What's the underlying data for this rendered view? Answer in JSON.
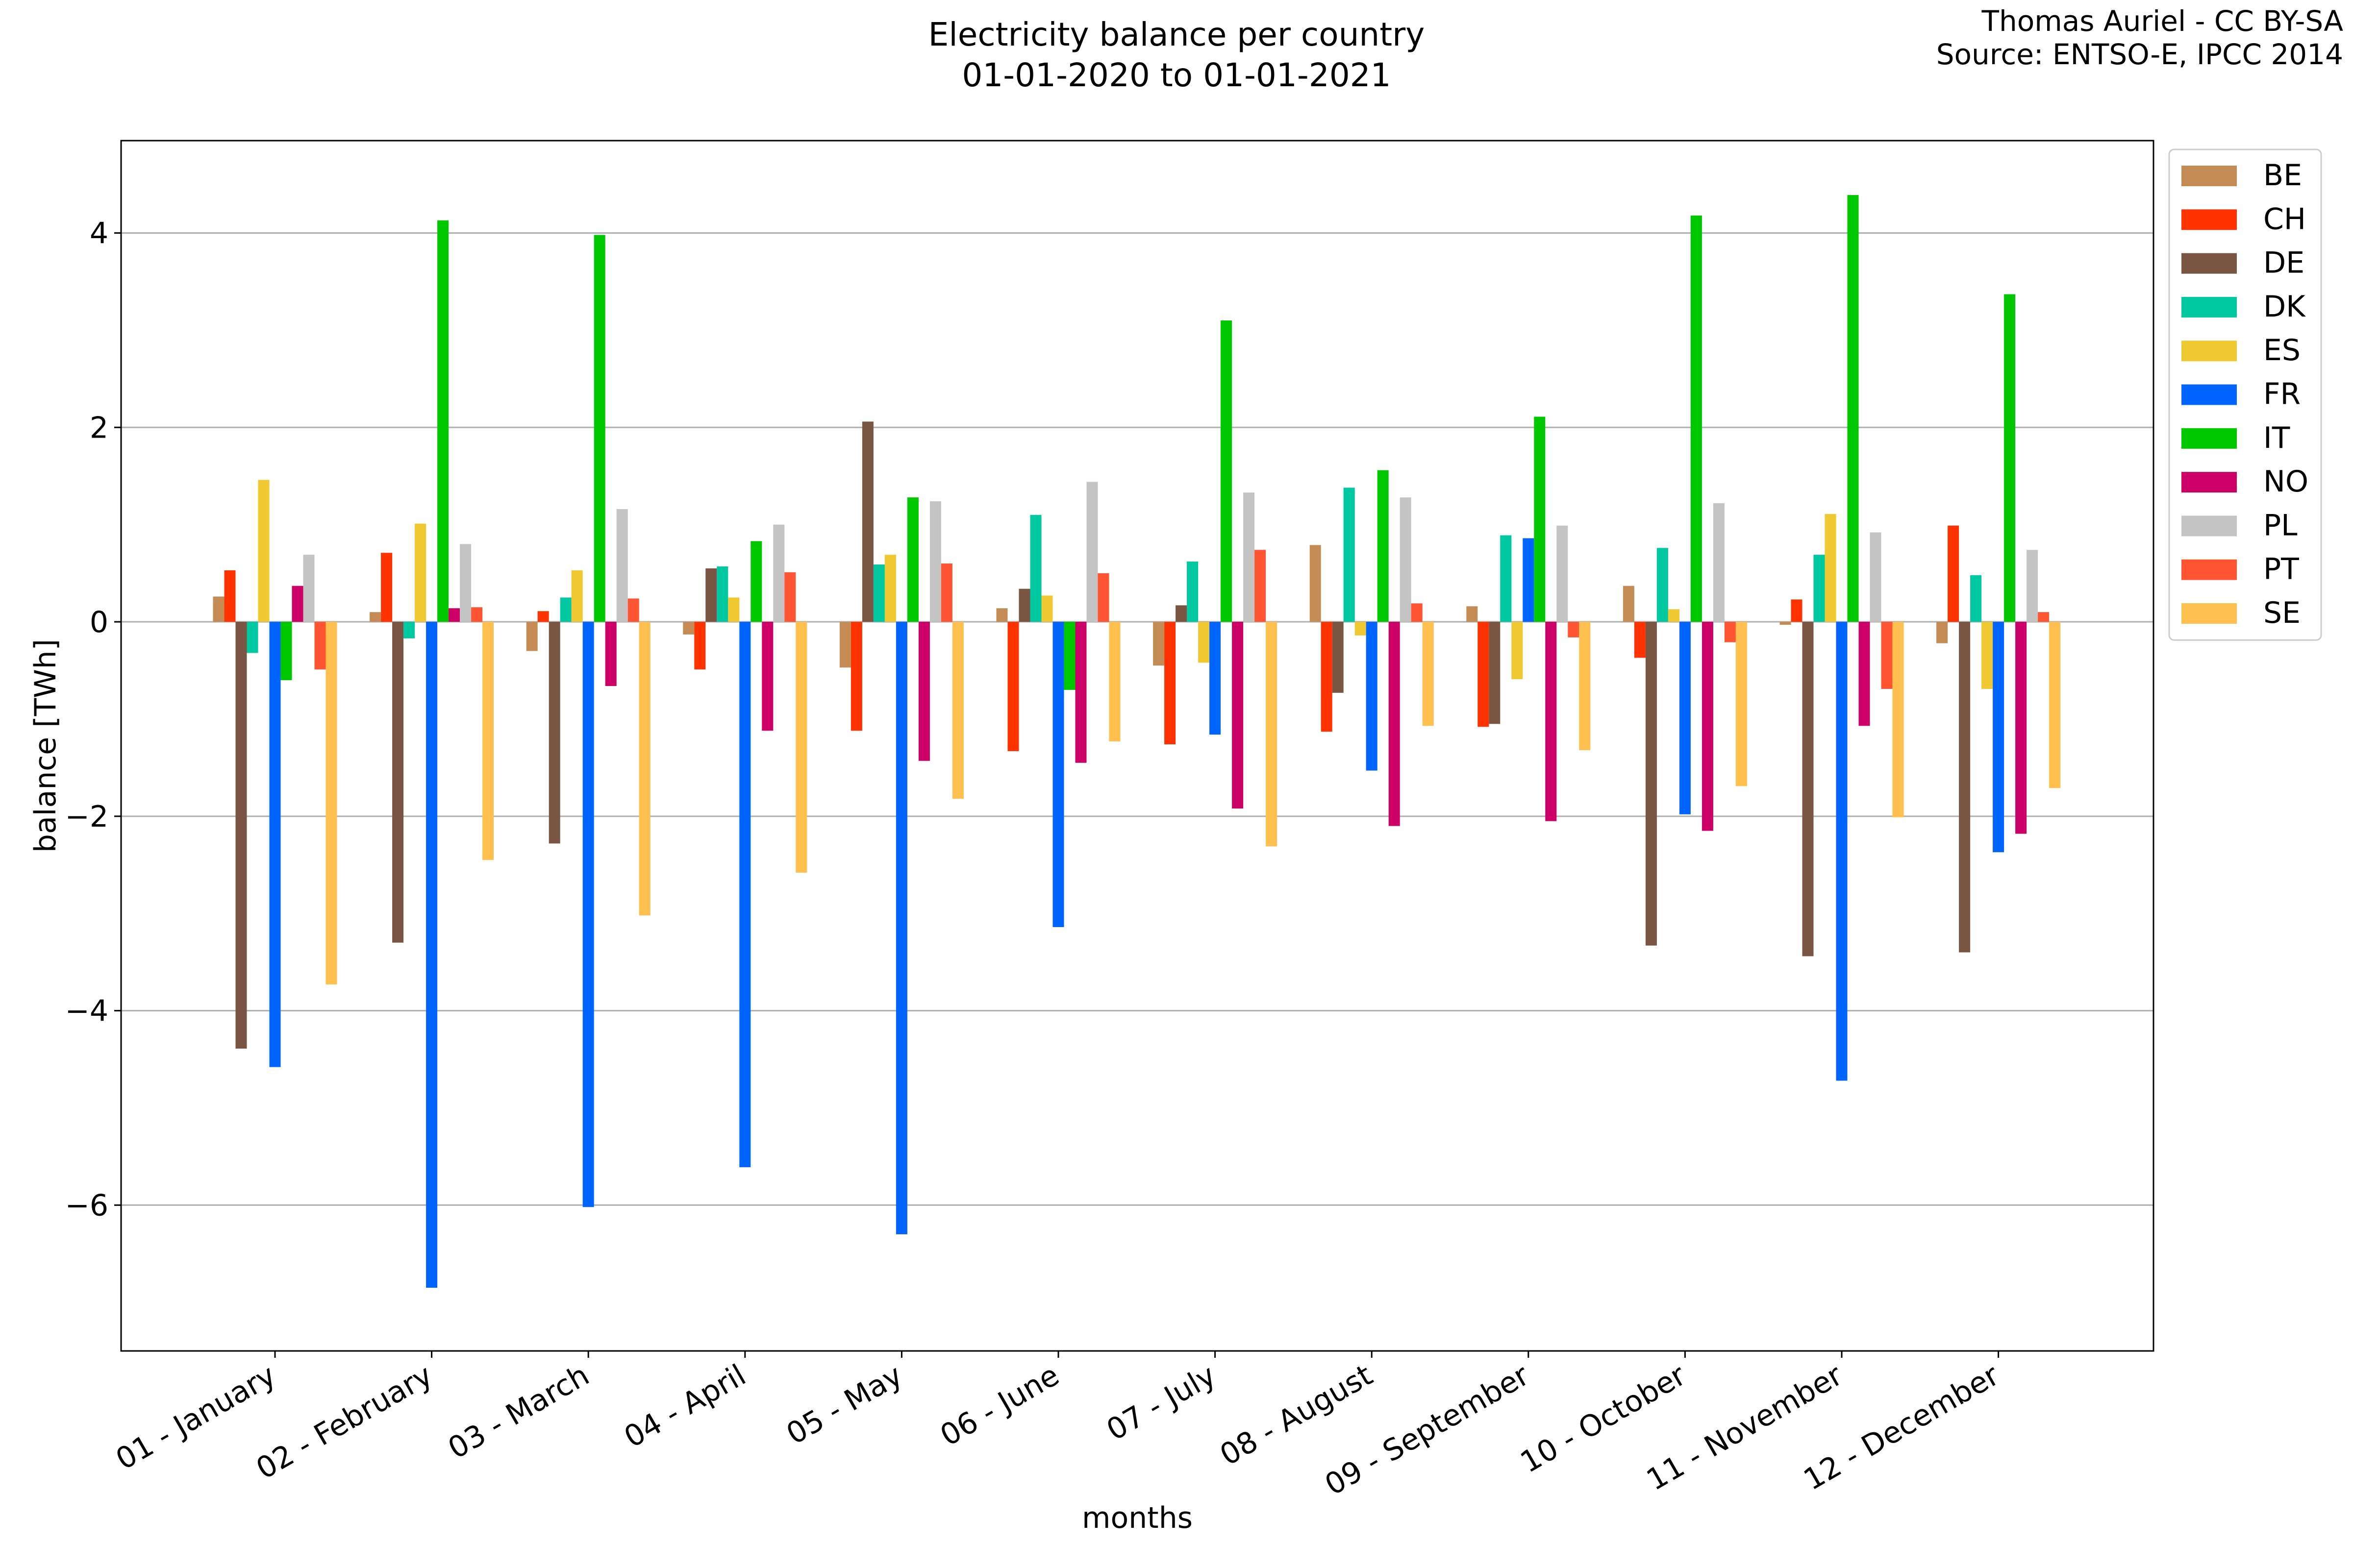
{
  "chart_data": {
    "type": "bar",
    "title": [
      "Electricity balance per country",
      "01-01-2020 to 01-01-2021"
    ],
    "credit": [
      "Thomas Auriel - CC BY-SA",
      "Source: ENTSO-E, IPCC 2014"
    ],
    "xlabel": "months",
    "ylabel": "balance [TWh]",
    "ylim": [
      -7.5,
      4.95
    ],
    "yticks": [
      4,
      2,
      0,
      -2,
      -4,
      -6
    ],
    "ytick_labels": [
      "4",
      "2",
      "0",
      "−2",
      "−4",
      "−6"
    ],
    "grid": "horizontal",
    "legend_position": "top-right",
    "categories": [
      "01 - January",
      "02 - February",
      "03 - March",
      "04 - April",
      "05 - May",
      "06 - June",
      "07 - July",
      "08 - August",
      "09 - September",
      "10 - October",
      "11 - November",
      "12 - December"
    ],
    "series": [
      {
        "name": "BE",
        "color": "#c48c54",
        "values": [
          0.26,
          0.1,
          -0.3,
          -0.13,
          -0.47,
          0.14,
          -0.45,
          0.79,
          0.16,
          0.37,
          -0.03,
          -0.22
        ]
      },
      {
        "name": "CH",
        "color": "#ff3300",
        "values": [
          0.53,
          0.71,
          0.11,
          -0.49,
          -1.12,
          -1.33,
          -1.26,
          -1.13,
          -1.08,
          -0.37,
          0.23,
          0.99
        ]
      },
      {
        "name": "DE",
        "color": "#7a5543",
        "values": [
          -4.39,
          -3.3,
          -2.28,
          0.55,
          2.06,
          0.34,
          0.17,
          -0.73,
          -1.05,
          -3.33,
          -3.44,
          -3.4
        ]
      },
      {
        "name": "DK",
        "color": "#00c8a0",
        "values": [
          -0.32,
          -0.17,
          0.25,
          0.57,
          0.59,
          1.1,
          0.62,
          1.38,
          0.89,
          0.76,
          0.69,
          0.48
        ]
      },
      {
        "name": "ES",
        "color": "#f0c832",
        "values": [
          1.46,
          1.01,
          0.53,
          0.25,
          0.69,
          0.27,
          -0.42,
          -0.14,
          -0.59,
          0.13,
          1.11,
          -0.69
        ]
      },
      {
        "name": "FR",
        "color": "#0064ff",
        "values": [
          -4.58,
          -6.85,
          -6.02,
          -5.61,
          -6.3,
          -3.14,
          -1.16,
          -1.53,
          0.86,
          -1.98,
          -4.72,
          -2.37
        ]
      },
      {
        "name": "IT",
        "color": "#00c800",
        "values": [
          -0.6,
          4.13,
          3.98,
          0.83,
          1.28,
          -0.7,
          3.1,
          1.56,
          2.11,
          4.18,
          4.39,
          3.37
        ]
      },
      {
        "name": "NO",
        "color": "#cc0066",
        "values": [
          0.37,
          0.14,
          -0.66,
          -1.12,
          -1.43,
          -1.45,
          -1.92,
          -2.1,
          -2.05,
          -2.15,
          -1.07,
          -2.18
        ]
      },
      {
        "name": "PL",
        "color": "#c4c4c4",
        "values": [
          0.69,
          0.8,
          1.16,
          1.0,
          1.24,
          1.44,
          1.33,
          1.28,
          0.99,
          1.22,
          0.92,
          0.74
        ]
      },
      {
        "name": "PT",
        "color": "#ff5533",
        "values": [
          -0.49,
          0.15,
          0.24,
          0.51,
          0.6,
          0.5,
          0.74,
          0.19,
          -0.16,
          -0.21,
          -0.69,
          0.1
        ]
      },
      {
        "name": "SE",
        "color": "#ffc050",
        "values": [
          -3.73,
          -2.45,
          -3.02,
          -2.58,
          -1.82,
          -1.23,
          -2.31,
          -1.07,
          -1.32,
          -1.69,
          -2.01,
          -1.71
        ]
      }
    ]
  }
}
